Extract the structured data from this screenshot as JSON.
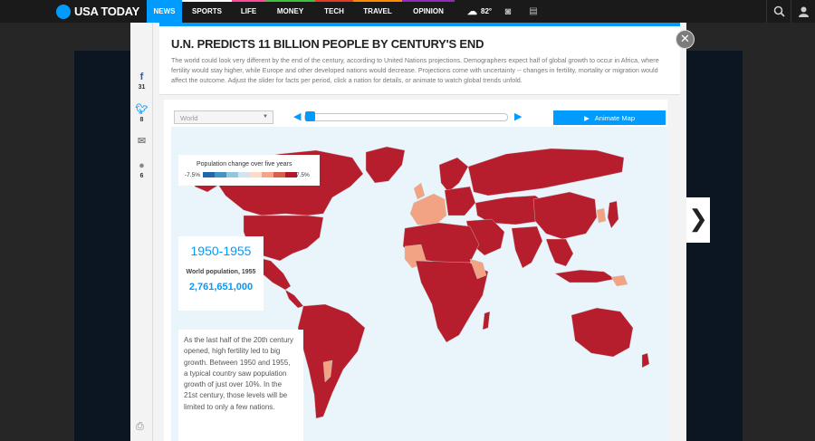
{
  "brand": {
    "name": "USA TODAY"
  },
  "nav": {
    "items": [
      {
        "label": "NEWS",
        "active": true,
        "color": "#009bff"
      },
      {
        "label": "SPORTS",
        "active": false,
        "color": "#ffffff"
      },
      {
        "label": "LIFE",
        "active": false,
        "color": "#ff4a9b"
      },
      {
        "label": "MONEY",
        "active": false,
        "color": "#3fc13f"
      },
      {
        "label": "TECH",
        "active": false,
        "color": "#e5392b"
      },
      {
        "label": "TRAVEL",
        "active": false,
        "color": "#ff8a00"
      },
      {
        "label": "OPINION",
        "active": false,
        "color": "#8e2dbb"
      }
    ],
    "weather_temp": "82°",
    "icons": [
      "weather-icon",
      "camera-icon",
      "media-icon",
      "search-icon",
      "user-icon"
    ]
  },
  "social": {
    "facebook_count": "31",
    "twitter_count": "8",
    "comment_count": "6"
  },
  "article": {
    "headline": "U.N. PREDICTS 11 BILLION PEOPLE BY CENTURY'S END",
    "intro": "The world could look very different by the end of the century, according to United Nations projections. Demographers expect half of global growth to occur in Africa, where fertility would stay higher, while Europe and other developed nations would decrease. Projections come with uncertainty -- changes in fertility, mortality or migration would affect the outcome. Adjust the slider for facts per period, click a nation for details, or animate to watch global trends unfold."
  },
  "controls": {
    "region_select": "World",
    "slider_position": 0,
    "animate_label": "Animate Map"
  },
  "legend": {
    "title": "Population change over five years",
    "min": "-7.5%",
    "max": "7.5%",
    "colors": [
      "#2166ac",
      "#4393c3",
      "#92c5de",
      "#d1e5f0",
      "#fddbc7",
      "#f4a582",
      "#d6604d",
      "#b2182b",
      "#8b0e1e"
    ]
  },
  "info": {
    "period": "1950-1955",
    "pop_label": "World population, 1955",
    "pop_value": "2,761,651,000"
  },
  "story": {
    "text": "As the last half of the 20th century opened, high fertility led to big growth. Between 1950 and 1955, a typical country saw population growth of just over 10%. In the 21st century, those levels will be limited to only a few nations."
  },
  "colors": {
    "accent": "#009bff",
    "high_growth": "#b71e2d",
    "low_growth": "#f2a383",
    "ocean": "#e9f4fb"
  }
}
